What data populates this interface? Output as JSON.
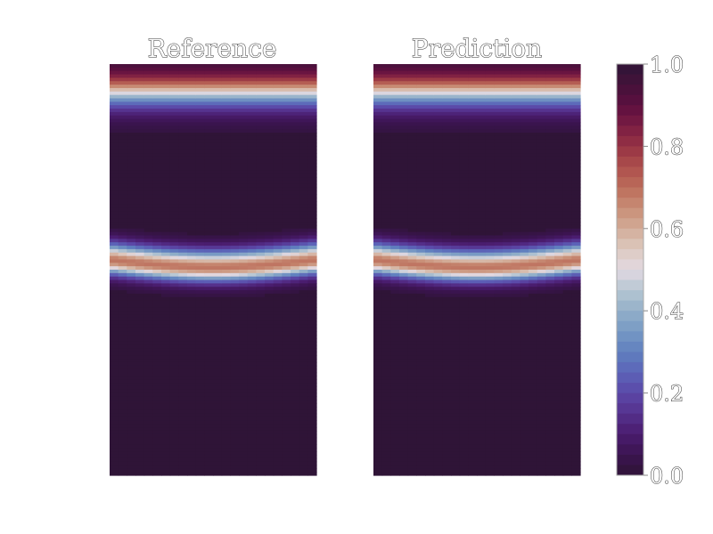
{
  "chart_data": {
    "type": "heatmap",
    "colormap": "twilight_shifted",
    "colorbar": {
      "range": [
        0.0,
        1.0
      ],
      "ticks": [
        0.0,
        0.2,
        0.4,
        0.6,
        0.8,
        1.0
      ],
      "tick_labels": [
        "0.0",
        "0.2",
        "0.4",
        "0.6",
        "0.8",
        "1.0"
      ],
      "color_stops": [
        {
          "value": 0.0,
          "color": "#2f1437"
        },
        {
          "value": 0.05,
          "color": "#3b1450"
        },
        {
          "value": 0.1,
          "color": "#4a1c6e"
        },
        {
          "value": 0.15,
          "color": "#55318d"
        },
        {
          "value": 0.2,
          "color": "#5b48a8"
        },
        {
          "value": 0.25,
          "color": "#5c64b8"
        },
        {
          "value": 0.3,
          "color": "#6080bf"
        },
        {
          "value": 0.35,
          "color": "#7799c4"
        },
        {
          "value": 0.4,
          "color": "#93b0c9"
        },
        {
          "value": 0.45,
          "color": "#b6c6d2"
        },
        {
          "value": 0.5,
          "color": "#e2d9e2"
        },
        {
          "value": 0.55,
          "color": "#dcc9bf"
        },
        {
          "value": 0.6,
          "color": "#d3ac98"
        },
        {
          "value": 0.65,
          "color": "#c88d75"
        },
        {
          "value": 0.7,
          "color": "#bc6d5b"
        },
        {
          "value": 0.75,
          "color": "#ad4f4c"
        },
        {
          "value": 0.8,
          "color": "#963344"
        },
        {
          "value": 0.85,
          "color": "#7a1c43"
        },
        {
          "value": 0.9,
          "color": "#5c0f3f"
        },
        {
          "value": 0.95,
          "color": "#44123a"
        },
        {
          "value": 1.0,
          "color": "#2f1437"
        }
      ]
    },
    "panels": [
      {
        "title": "Reference",
        "field": {
          "background": 0.0,
          "top_front": {
            "center_fraction": 0.07,
            "width_fraction": 0.05
          },
          "middle_front": {
            "center_fraction": 0.495,
            "width_fraction": 0.045,
            "wave_amplitude_fraction": 0.018
          }
        }
      },
      {
        "title": "Prediction",
        "field": {
          "background": 0.0,
          "top_front": {
            "center_fraction": 0.07,
            "width_fraction": 0.05
          },
          "middle_front": {
            "center_fraction": 0.495,
            "width_fraction": 0.045,
            "wave_amplitude_fraction": 0.018
          }
        }
      }
    ]
  }
}
